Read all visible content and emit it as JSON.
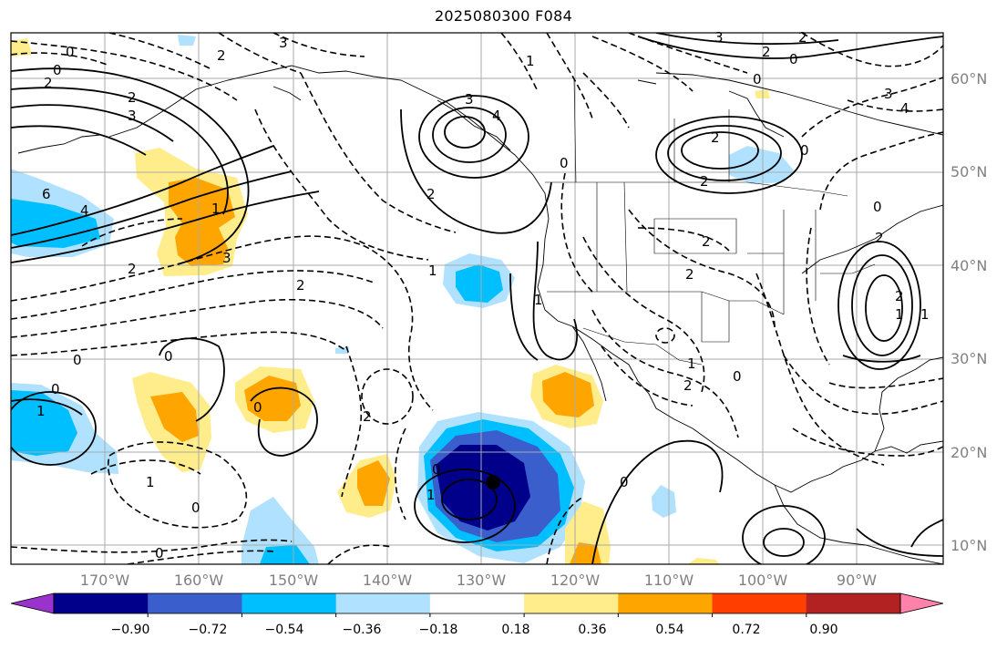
{
  "title": "2025080300 F084",
  "lat_labels": [
    "60°N",
    "50°N",
    "40°N",
    "30°N",
    "20°N",
    "10°N"
  ],
  "lon_labels": [
    "170°W",
    "160°W",
    "150°W",
    "140°W",
    "130°W",
    "120°W",
    "110°W",
    "100°W",
    "90°W"
  ],
  "colorbar": {
    "ticks": [
      "−0.90",
      "−0.72",
      "−0.54",
      "−0.36",
      "−0.18",
      "0.18",
      "0.36",
      "0.54",
      "0.72",
      "0.90"
    ],
    "colors": [
      "#9a32cd",
      "#00008b",
      "#3a5fcd",
      "#00bfff",
      "#b0e2ff",
      "#ffffff",
      "#ffec8b",
      "#ffa500",
      "#ff3e00",
      "#b22222",
      "#ff82ab"
    ]
  },
  "contour_labels": [
    "0",
    "3",
    "2",
    "0",
    "2",
    "3",
    "2",
    "6",
    "4",
    "1",
    "3",
    "2",
    "2",
    "3",
    "4",
    "1",
    "0",
    "2",
    "3",
    "2",
    "0",
    "2",
    "0",
    "3",
    "4",
    "2",
    "2",
    "2",
    "1",
    "2",
    "2",
    "1",
    "0",
    "0",
    "0",
    "0",
    "2",
    "1",
    "1",
    "0",
    "0",
    "1",
    "2",
    "1",
    "0",
    "0",
    "2",
    "1",
    "1",
    "0",
    "0",
    "0"
  ]
}
